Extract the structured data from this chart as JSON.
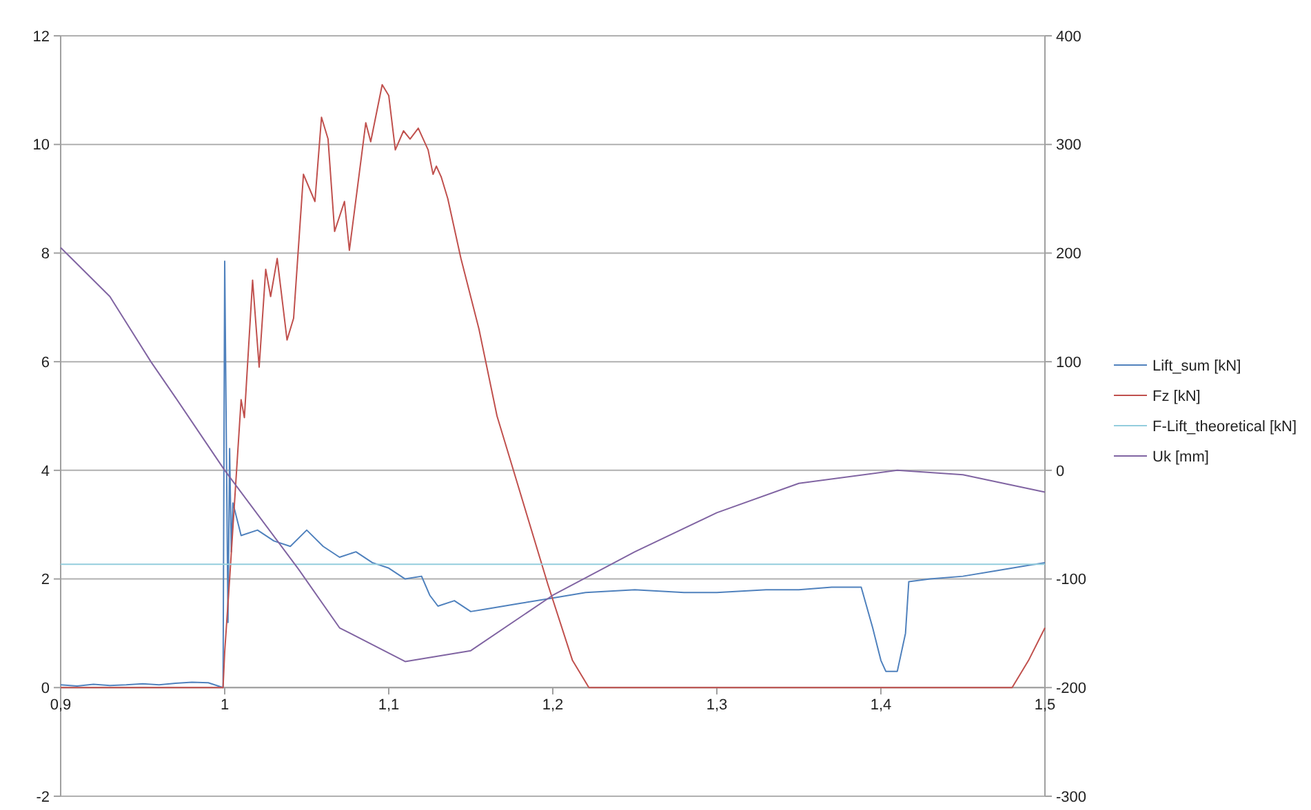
{
  "chart_data": {
    "type": "line",
    "xlim": [
      0.9,
      1.5
    ],
    "xticks": [
      {
        "value": 0.9,
        "label": "0,9"
      },
      {
        "value": 1,
        "label": "1"
      },
      {
        "value": 1.1,
        "label": "1,1"
      },
      {
        "value": 1.2,
        "label": "1,2"
      },
      {
        "value": 1.3,
        "label": "1,3"
      },
      {
        "value": 1.4,
        "label": "1,4"
      },
      {
        "value": 1.5,
        "label": "1,5"
      }
    ],
    "ylim": [
      -2,
      12
    ],
    "yticks": [
      -2,
      0,
      2,
      4,
      6,
      8,
      10,
      12
    ],
    "y2lim": [
      -300,
      400
    ],
    "y2ticks": [
      -300,
      -200,
      -100,
      0,
      100,
      200,
      300,
      400
    ],
    "grid": "y",
    "legend": "right",
    "marker": "none",
    "line_style": "solid",
    "series": [
      {
        "name": "Lift_sum [kN]",
        "color": "#4f81bd",
        "x": [
          0.9,
          0.91,
          0.92,
          0.93,
          0.94,
          0.95,
          0.96,
          0.97,
          0.98,
          0.99,
          0.999,
          1.0,
          1.002,
          1.003,
          1.004,
          1.005,
          1.01,
          1.02,
          1.03,
          1.04,
          1.05,
          1.06,
          1.07,
          1.08,
          1.09,
          1.1,
          1.11,
          1.12,
          1.125,
          1.13,
          1.14,
          1.15,
          1.16,
          1.17,
          1.18,
          1.2,
          1.22,
          1.25,
          1.28,
          1.3,
          1.33,
          1.35,
          1.37,
          1.388,
          1.395,
          1.4,
          1.403,
          1.41,
          1.415,
          1.417,
          1.43,
          1.45,
          1.47,
          1.49,
          1.5
        ],
        "values": [
          0.05,
          0.03,
          0.06,
          0.04,
          0.05,
          0.07,
          0.05,
          0.08,
          0.1,
          0.09,
          0.0,
          7.85,
          1.2,
          4.4,
          2.5,
          3.4,
          2.8,
          2.9,
          2.7,
          2.6,
          2.9,
          2.6,
          2.4,
          2.5,
          2.3,
          2.2,
          2.0,
          2.05,
          1.7,
          1.5,
          1.6,
          1.4,
          1.45,
          1.5,
          1.55,
          1.65,
          1.75,
          1.8,
          1.75,
          1.75,
          1.8,
          1.8,
          1.85,
          1.85,
          1.1,
          0.5,
          0.3,
          0.3,
          1.0,
          1.95,
          2.0,
          2.05,
          2.15,
          2.25,
          2.3
        ]
      },
      {
        "name": "Fz [kN]",
        "color": "#c0504d",
        "x": [
          0.9,
          0.95,
          0.999,
          1.0,
          1.003,
          1.01,
          1.012,
          1.017,
          1.021,
          1.025,
          1.028,
          1.032,
          1.038,
          1.042,
          1.048,
          1.055,
          1.059,
          1.063,
          1.067,
          1.073,
          1.076,
          1.086,
          1.089,
          1.096,
          1.1,
          1.104,
          1.109,
          1.113,
          1.118,
          1.124,
          1.127,
          1.129,
          1.132,
          1.136,
          1.144,
          1.155,
          1.166,
          1.174,
          1.184,
          1.197,
          1.212,
          1.222,
          1.25,
          1.3,
          1.35,
          1.4,
          1.45,
          1.48,
          1.49,
          1.5
        ],
        "values": [
          0,
          0,
          0,
          0.66,
          2.0,
          5.3,
          4.97,
          7.5,
          5.9,
          7.7,
          7.2,
          7.9,
          6.4,
          6.8,
          9.45,
          8.95,
          10.5,
          10.1,
          8.4,
          8.95,
          8.05,
          10.4,
          10.05,
          11.1,
          10.9,
          9.9,
          10.25,
          10.1,
          10.3,
          9.9,
          9.45,
          9.6,
          9.4,
          9.0,
          7.9,
          6.6,
          5.0,
          4.2,
          3.2,
          1.9,
          0.5,
          0,
          0,
          0,
          0,
          0,
          0,
          0,
          0.5,
          1.1
        ]
      },
      {
        "name": "F-Lift_theoretical [kN]",
        "color": "#93cddd",
        "x": [
          0.9,
          1.5
        ],
        "values": [
          2.27,
          2.27
        ]
      },
      {
        "name": "Uk [mm]",
        "color": "#8064a2",
        "axis": "y2",
        "x": [
          0.9,
          0.93,
          0.955,
          0.97,
          1.0,
          1.045,
          1.07,
          1.11,
          1.15,
          1.2,
          1.25,
          1.3,
          1.35,
          1.41,
          1.45,
          1.5
        ],
        "values": [
          205,
          160,
          100,
          67,
          0,
          -91,
          -145,
          -176,
          -166,
          -115,
          -75,
          -39,
          -12,
          0,
          -4,
          -20
        ]
      }
    ]
  }
}
